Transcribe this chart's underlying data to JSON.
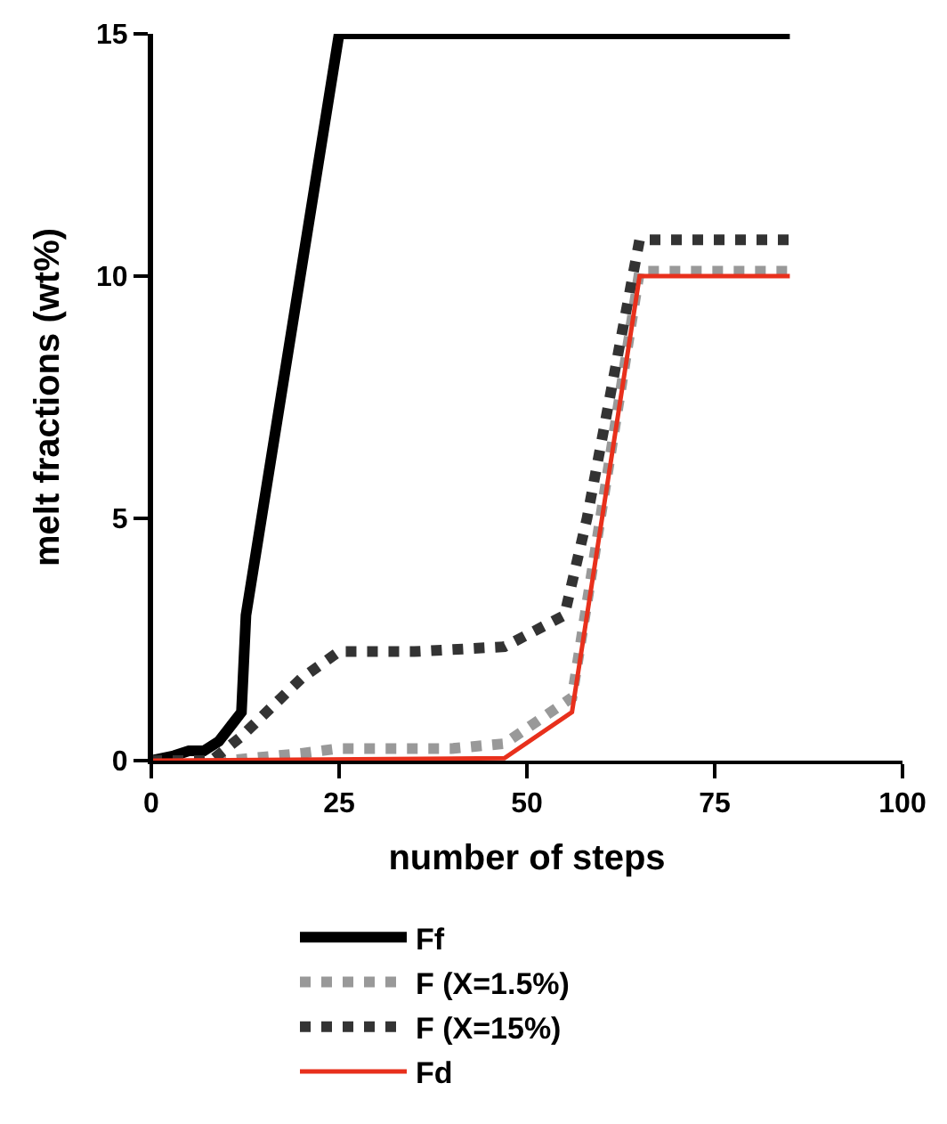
{
  "chart_data": {
    "type": "line",
    "xlabel": "number of steps",
    "ylabel": "melt fractions (wt%)",
    "xlim": [
      0,
      100
    ],
    "xticks": [
      0,
      25,
      50,
      75,
      100
    ],
    "ylim": [
      0,
      15
    ],
    "yticks": [
      0,
      5,
      10,
      15
    ],
    "legend": "bottom",
    "marker": "none",
    "series": [
      {
        "name": "Ff",
        "color": "#000000",
        "line_style": "solid",
        "x": [
          0,
          3,
          5,
          7,
          9,
          11,
          12,
          12.6,
          25,
          85
        ],
        "values": [
          0,
          0.1,
          0.2,
          0.2,
          0.4,
          0.8,
          1.0,
          3.0,
          15,
          15
        ]
      },
      {
        "name": "F (X=1.5%)",
        "color": "#999999",
        "line_style": "dotted",
        "x": [
          0,
          10,
          20,
          25,
          40,
          47,
          56,
          65,
          85
        ],
        "values": [
          0,
          0,
          0.15,
          0.25,
          0.25,
          0.35,
          1.3,
          10.1,
          10.1
        ]
      },
      {
        "name": "F (X=15%)",
        "color": "#333333",
        "line_style": "dotted",
        "x": [
          0,
          8,
          12,
          20,
          25,
          35,
          47,
          55,
          58,
          65,
          85
        ],
        "values": [
          0,
          0,
          0.5,
          1.7,
          2.25,
          2.25,
          2.35,
          3.0,
          5.0,
          10.75,
          10.75
        ]
      },
      {
        "name": "Fd",
        "color": "#e8301c",
        "line_style": "solid",
        "x": [
          0,
          47,
          56,
          65,
          85
        ],
        "values": [
          0,
          0.05,
          1.0,
          10,
          10
        ]
      }
    ]
  }
}
